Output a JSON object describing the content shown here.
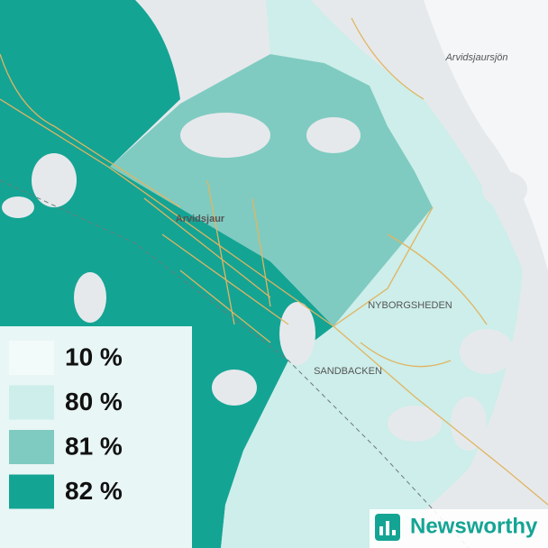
{
  "map": {
    "labels": [
      "Arvidsjaursjön",
      "Arvidsjaur",
      "NYBORGSHEDEN",
      "SANDBACKEN"
    ]
  },
  "legend": {
    "items": [
      {
        "label": "10 %",
        "color": "#f3fbfa"
      },
      {
        "label": "80 %",
        "color": "#cdeeea"
      },
      {
        "label": "81 %",
        "color": "#7fcbc1"
      },
      {
        "label": "82 %",
        "color": "#14a494"
      }
    ]
  },
  "logo": {
    "text": "Newsworthy"
  }
}
